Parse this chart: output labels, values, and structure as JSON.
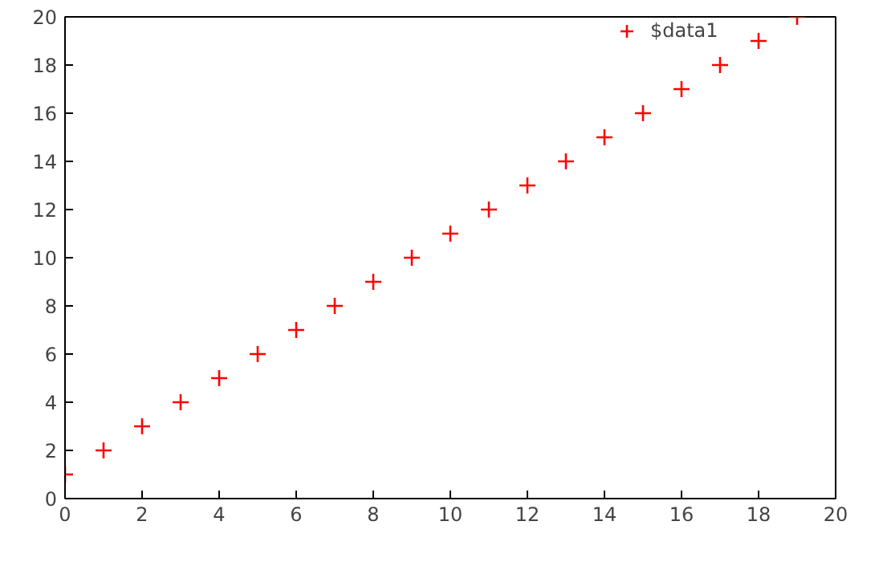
{
  "chart_data": {
    "type": "scatter",
    "x": [
      0,
      1,
      2,
      3,
      4,
      5,
      6,
      7,
      8,
      9,
      10,
      11,
      12,
      13,
      14,
      15,
      16,
      17,
      18,
      19
    ],
    "series": [
      {
        "name": "$data1",
        "color": "#ff0000",
        "values": [
          1,
          2,
          3,
          4,
          5,
          6,
          7,
          8,
          9,
          10,
          11,
          12,
          13,
          14,
          15,
          16,
          17,
          18,
          19,
          20
        ]
      }
    ],
    "xlim": [
      0,
      20
    ],
    "ylim": [
      0,
      20
    ],
    "xticks": [
      0,
      2,
      4,
      6,
      8,
      10,
      12,
      14,
      16,
      18,
      20
    ],
    "yticks": [
      0,
      2,
      4,
      6,
      8,
      10,
      12,
      14,
      16,
      18,
      20
    ],
    "marker": "cross",
    "grid": false,
    "legend": "top right"
  }
}
